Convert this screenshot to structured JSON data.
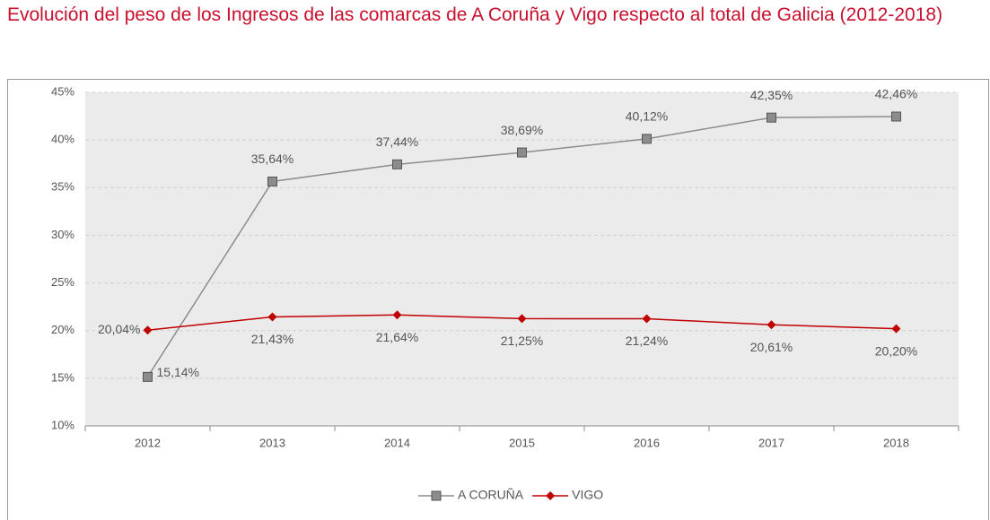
{
  "chart_data": {
    "type": "line",
    "title": "Evolución del peso de los Ingresos de las comarcas de A Coruña y Vigo respecto al total de Galicia (2012-2018)",
    "categories": [
      "2012",
      "2013",
      "2014",
      "2015",
      "2016",
      "2017",
      "2018"
    ],
    "series": [
      {
        "name": "A CORUÑA",
        "color": "#8c8c8c",
        "marker": "square",
        "values": [
          15.14,
          35.64,
          37.44,
          38.69,
          40.12,
          42.35,
          42.46
        ],
        "value_labels": [
          "15,14%",
          "35,64%",
          "37,44%",
          "38,69%",
          "40,12%",
          "42,35%",
          "42,46%"
        ]
      },
      {
        "name": "VIGO",
        "color": "#c00000",
        "marker": "diamond",
        "values": [
          20.04,
          21.43,
          21.64,
          21.25,
          21.24,
          20.61,
          20.2
        ],
        "value_labels": [
          "20,04%",
          "21,43%",
          "21,64%",
          "21,25%",
          "21,24%",
          "20,61%",
          "20,20%"
        ]
      }
    ],
    "ylim": [
      10,
      45
    ],
    "yticks": [
      {
        "value": 10,
        "label": "10%"
      },
      {
        "value": 15,
        "label": "15%"
      },
      {
        "value": 20,
        "label": "20%"
      },
      {
        "value": 25,
        "label": "25%"
      },
      {
        "value": 30,
        "label": "30%"
      },
      {
        "value": 35,
        "label": "35%"
      },
      {
        "value": 40,
        "label": "40%"
      },
      {
        "value": 45,
        "label": "45%"
      }
    ],
    "grid": true,
    "legend": "bottom"
  }
}
